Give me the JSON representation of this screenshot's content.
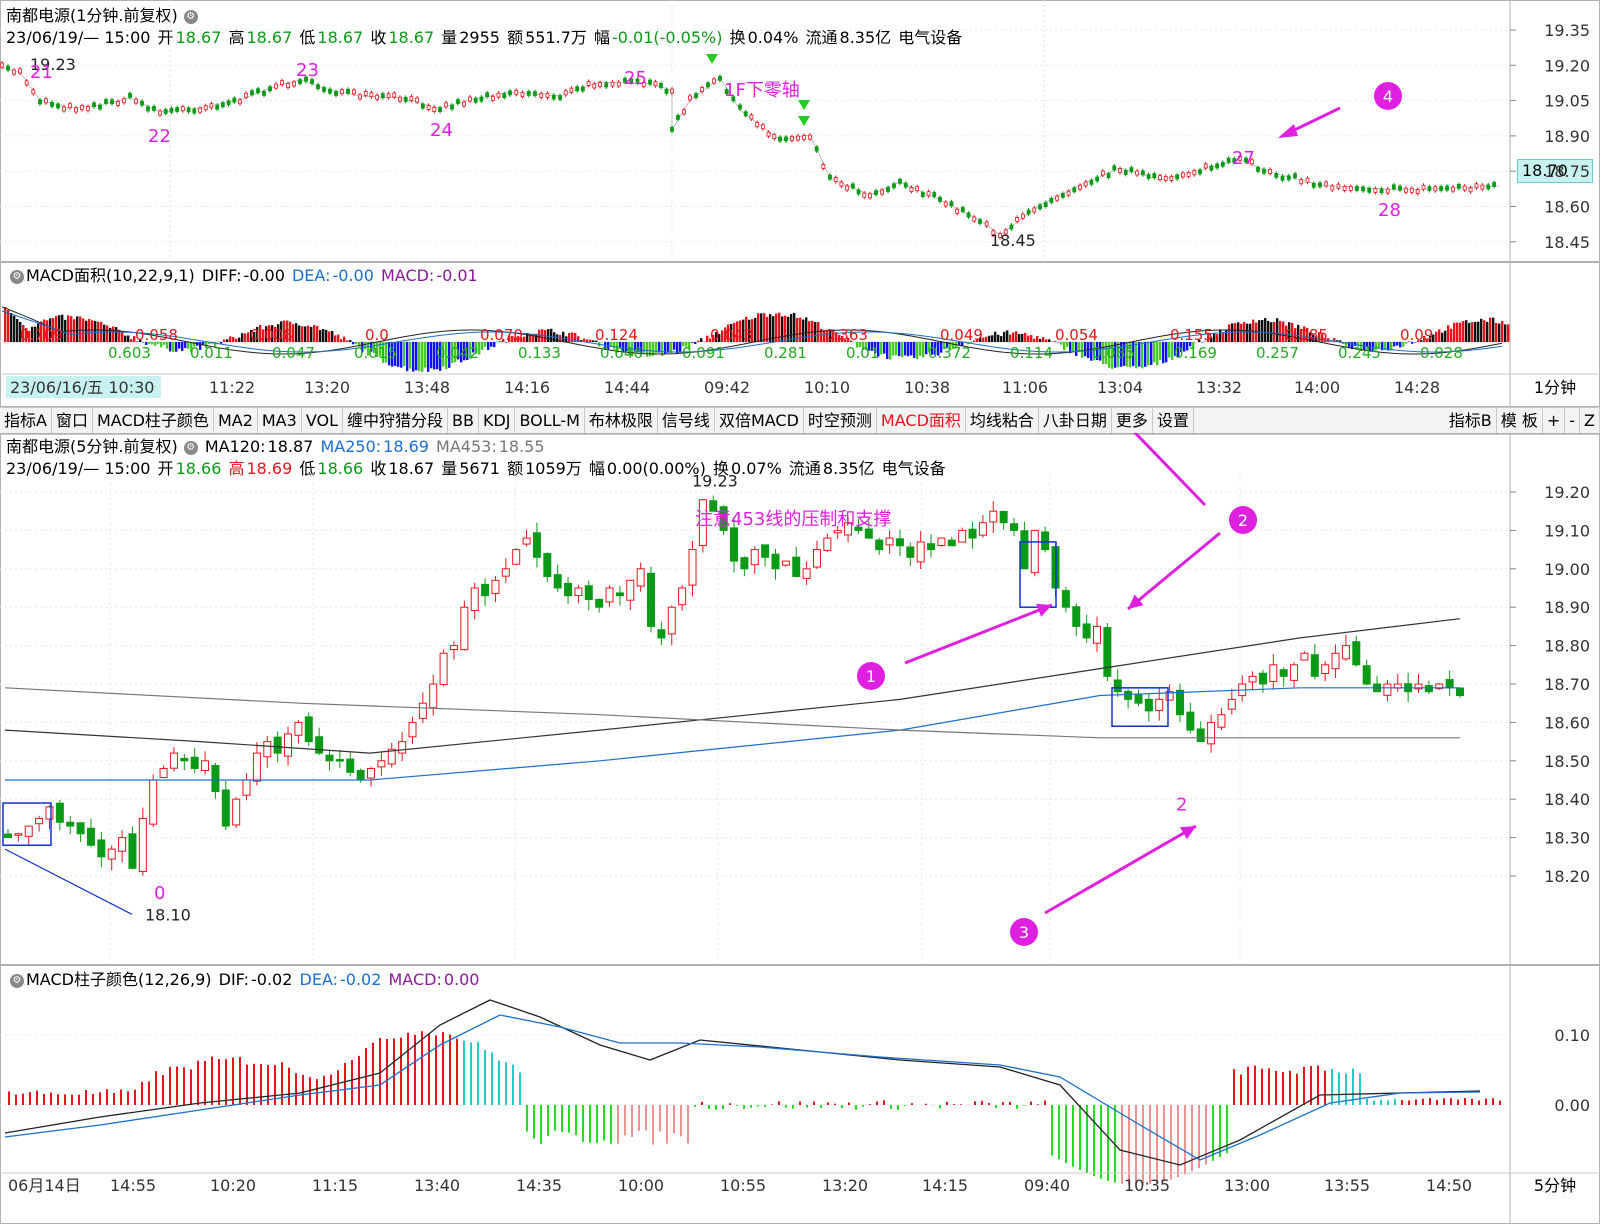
{
  "top_panel": {
    "title": "南都电源(1分钟.前复权)",
    "date_time": "23/06/19/— 15:00",
    "open_label": "开",
    "open": "18.67",
    "high_label": "高",
    "high": "18.67",
    "low_label": "低",
    "low": "18.67",
    "close_label": "收",
    "close": "18.67",
    "volume_label": "量",
    "volume": "2955",
    "amount_label": "额",
    "amount": "551.7万",
    "change_label": "幅",
    "change": "-0.01(-0.05%)",
    "turnover_label": "换",
    "turnover": "0.04%",
    "float_label": "流通",
    "float_value": "8.35亿",
    "sector": "电气设备",
    "price_axis": [
      "19.35",
      "19.20",
      "19.05",
      "18.90",
      "18.75",
      "18.60",
      "18.45"
    ],
    "current_price": "18.70",
    "high_marker": "19.23",
    "low_marker": "18.45",
    "wave_labels": [
      "21",
      "22",
      "23",
      "24",
      "25",
      "27",
      "28"
    ],
    "annotation": "1F下零轴"
  },
  "top_macd": {
    "title": "MACD面积(10,22,9,1)",
    "diff_label": "DIFF:",
    "diff": "-0.00",
    "dea_label": "DEA:",
    "dea": "-0.00",
    "macd_label": "MACD:",
    "macd": "-0.01",
    "area_red": [
      "0.709",
      "0.058",
      "0.008",
      "0.0",
      "0.070",
      "0.124",
      "0.043",
      "0.363",
      "0.049",
      "0.054",
      "0.155",
      "0.085",
      "0.09"
    ],
    "area_green": [
      "0.603",
      "0.011",
      "0.047",
      "0.015",
      "0.042",
      "0.133",
      "0.046",
      "0.091",
      "0.281",
      "0.01",
      "0.372",
      "0.114",
      "0.085",
      "0.169",
      "0.257",
      "0.245",
      "0.028"
    ],
    "time_labels": [
      "23/06/16/五 10:30",
      "11:22",
      "13:20",
      "13:48",
      "14:16",
      "14:44",
      "09:42",
      "10:10",
      "10:38",
      "11:06",
      "13:04",
      "13:32",
      "14:00",
      "14:28"
    ],
    "period": "1分钟"
  },
  "toolbar": {
    "items": [
      "指标A",
      "窗口",
      "MACD柱子颜色",
      "MA2",
      "MA3",
      "VOL",
      "缠中狩猎分段",
      "BB",
      "KDJ",
      "BOLL-M",
      "布林极限",
      "信号线",
      "双倍MACD",
      "时空预测",
      "MACD面积",
      "均线粘合",
      "八卦日期",
      "更多",
      "设置"
    ],
    "active": "MACD面积",
    "right_items": [
      "指标B",
      "模 板",
      "+",
      "-",
      "Z"
    ]
  },
  "main_panel": {
    "title": "南都电源(5分钟.前复权)",
    "ma120_label": "MA120:",
    "ma120": "18.87",
    "ma250_label": "MA250:",
    "ma250": "18.69",
    "ma453_label": "MA453:",
    "ma453": "18.55",
    "date_time": "23/06/19/— 15:00",
    "open_label": "开",
    "open": "18.66",
    "high_label": "高",
    "high": "18.69",
    "low_label": "低",
    "low": "18.66",
    "close_label": "收",
    "close": "18.67",
    "volume_label": "量",
    "volume": "5671",
    "amount_label": "额",
    "amount": "1059万",
    "change_label": "幅",
    "change": "0.00(0.00%)",
    "turnover_label": "换",
    "turnover": "0.07%",
    "float_label": "流通",
    "float_value": "8.35亿",
    "sector": "电气设备",
    "price_axis": [
      "19.20",
      "19.10",
      "19.00",
      "18.90",
      "18.80",
      "18.70",
      "18.60",
      "18.50",
      "18.40",
      "18.30",
      "18.20"
    ],
    "high_marker": "19.23",
    "low_marker": "18.10",
    "annotation": "注意453线的压制和支撑",
    "wave_labels": [
      "0",
      "2"
    ],
    "callouts": [
      "1",
      "2",
      "3",
      "4"
    ]
  },
  "bottom_macd": {
    "title": "MACD柱子颜色(12,26,9)",
    "dif_label": "DIF:",
    "dif": "-0.02",
    "dea_label": "DEA:",
    "dea": "-0.02",
    "macd_label": "MACD:",
    "macd": "0.00",
    "axis": [
      "0.10",
      "0.00"
    ],
    "time_labels": [
      "06月14日",
      "14:55",
      "10:20",
      "11:15",
      "13:40",
      "14:35",
      "10:00",
      "10:55",
      "13:20",
      "14:15",
      "09:40",
      "10:35",
      "13:00",
      "13:55",
      "14:50"
    ],
    "period": "5分钟"
  },
  "colors": {
    "up": "#e8141c",
    "down": "#0a9a17",
    "ma250": "#1a6fd0",
    "ma120": "#333333",
    "ma453": "#666666",
    "annotation": "#e020e0",
    "macd_red": "#e8141c",
    "macd_green": "#22dd22",
    "macd_cyan": "#22cccc",
    "macd_blue": "#1010ff"
  }
}
